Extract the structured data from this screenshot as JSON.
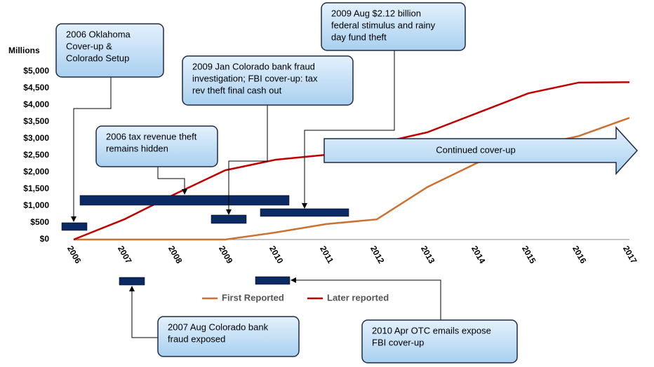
{
  "chart_data": {
    "type": "line",
    "y_axis_label": "Millions",
    "categories": [
      "2006",
      "2007",
      "2008",
      "2009",
      "2010",
      "2011",
      "2012",
      "2013",
      "2014",
      "2015",
      "2016",
      "2017"
    ],
    "series": [
      {
        "name": "First Reported",
        "color": "#cd7132",
        "values": [
          0,
          0,
          0,
          0,
          210,
          460,
          600,
          1560,
          2290,
          2750,
          3080,
          3620
        ]
      },
      {
        "name": "Later reported",
        "color": "#c00000",
        "values": [
          0,
          600,
          1350,
          2060,
          2375,
          2520,
          2850,
          3190,
          3770,
          4350,
          4670,
          4680
        ]
      }
    ],
    "ylim": [
      0,
      5000
    ],
    "yticks": [
      {
        "value": 0,
        "label": "$0"
      },
      {
        "value": 500,
        "label": "$500"
      },
      {
        "value": 1000,
        "label": "$1,000"
      },
      {
        "value": 1500,
        "label": "$1,500"
      },
      {
        "value": 2000,
        "label": "$2,000"
      },
      {
        "value": 2500,
        "label": "$2,500"
      },
      {
        "value": 3000,
        "label": "$3,000"
      },
      {
        "value": 3500,
        "label": "$3,500"
      },
      {
        "value": 4000,
        "label": "$4,000"
      },
      {
        "value": 4500,
        "label": "$4,500"
      },
      {
        "value": 5000,
        "label": "$5,000"
      }
    ],
    "grid": false,
    "legend": "bottom",
    "arrow_label": "Continued cover-up",
    "annotations": [
      [
        "2006 Oklahoma",
        "Cover-up &",
        "Colorado Setup"
      ],
      [
        "2009 Aug $2.12 billion",
        "federal stimulus and rainy",
        "day fund theft"
      ],
      [
        "2009 Jan Colorado bank fraud",
        "investigation;  FBI cover-up: tax",
        "rev theft final cash out"
      ],
      [
        "2006 tax revenue theft",
        "remains hidden"
      ],
      [
        "2007 Aug Colorado bank",
        "fraud exposed"
      ],
      [
        "2010 Apr OTC emails expose",
        "FBI cover-up"
      ]
    ]
  }
}
